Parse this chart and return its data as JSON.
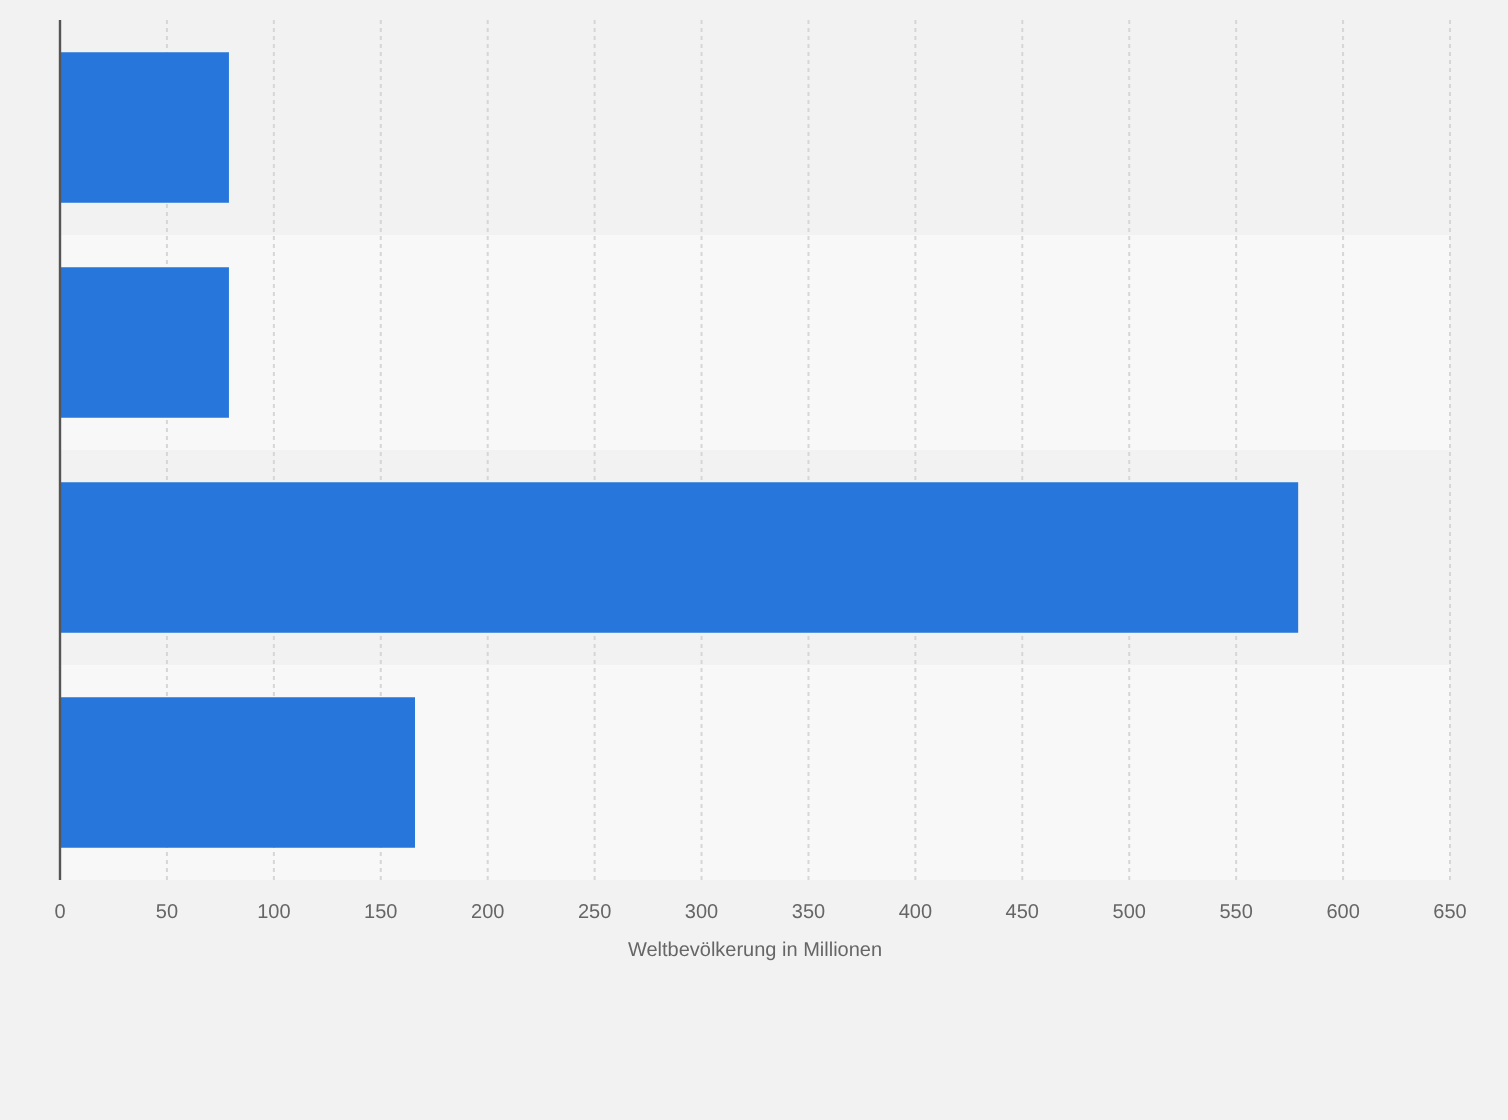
{
  "chart_data": {
    "type": "bar",
    "orientation": "horizontal",
    "xlabel": "Weltbevölkerung in Millionen",
    "categories": [
      null,
      null,
      null,
      null
    ],
    "values": [
      79,
      79,
      579,
      166
    ],
    "color": "#2776db",
    "xlim": [
      0,
      650
    ],
    "xticks": [
      0,
      50,
      100,
      150,
      200,
      250,
      300,
      350,
      400,
      450,
      500,
      550,
      600,
      650
    ],
    "grid": "x"
  }
}
